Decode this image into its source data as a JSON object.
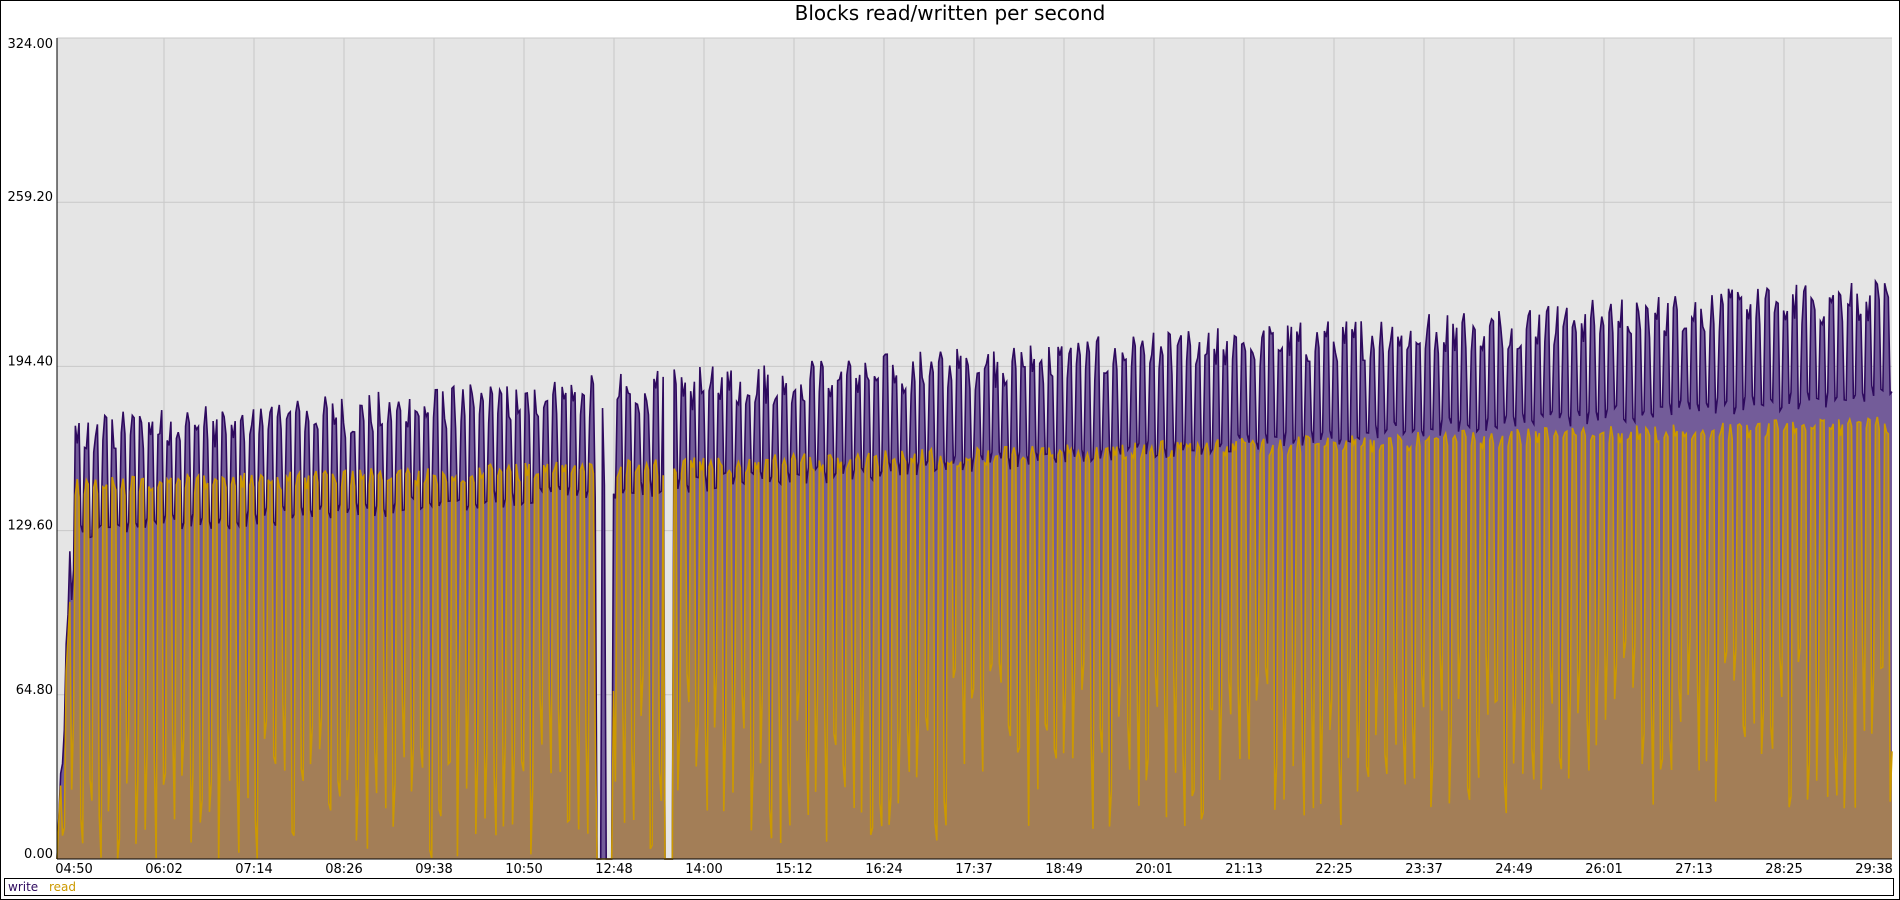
{
  "chart_data": {
    "type": "area",
    "title": "Blocks read/written per second",
    "xlabel": "",
    "ylabel": "",
    "ylim": [
      0,
      324
    ],
    "y_ticks": [
      "0.00",
      "64.80",
      "129.60",
      "194.40",
      "259.20",
      "324.00"
    ],
    "x_ticks": [
      "04:50",
      "06:02",
      "07:14",
      "08:26",
      "09:38",
      "10:50",
      "12:48",
      "14:00",
      "15:12",
      "16:24",
      "17:37",
      "18:49",
      "20:01",
      "21:13",
      "22:25",
      "23:37",
      "24:49",
      "26:01",
      "27:13",
      "28:25",
      "29:38"
    ],
    "grid": true,
    "legend_position": "bottom-left",
    "samples": 1000,
    "series": [
      {
        "name": "write",
        "color": "#2e0a5e",
        "fill": "#735c99",
        "trend_start": 140,
        "trend_end": 195,
        "oscillation_period": 5,
        "peak_extra": 35,
        "trough_extra": -15,
        "gaps": [
          [
            0.294,
            0.297
          ],
          [
            0.299,
            0.303
          ],
          [
            0.331,
            0.336
          ]
        ]
      },
      {
        "name": "read",
        "color": "#cc9900",
        "fill": "#a88250",
        "trend_start": 135,
        "trend_end": 160,
        "oscillation_period": 5,
        "peak_extra": 15,
        "trough_extra": -140,
        "gaps": [
          [
            0.294,
            0.303
          ],
          [
            0.331,
            0.336
          ]
        ]
      }
    ]
  }
}
